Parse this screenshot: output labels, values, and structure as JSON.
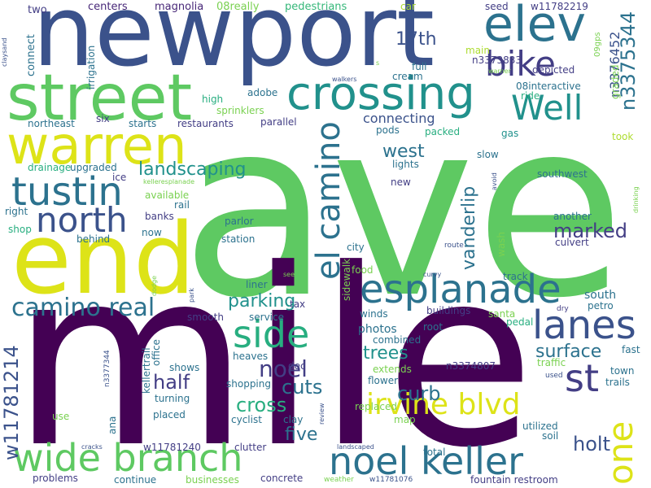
{
  "colors": {
    "dark-purple": "#440154",
    "indigo": "#3b528b",
    "navy": "#433e85",
    "teal-blue": "#2c728e",
    "teal": "#21918c",
    "sea-green": "#28ae80",
    "green": "#5ec962",
    "lime": "#addc30",
    "yellow": "#dde318",
    "light-green": "#7ad151",
    "mint": "#35b779",
    "purple": "#482878"
  },
  "words": {
    "ave": "ave",
    "mile": "mile",
    "newport": "newport",
    "end": "end",
    "street": "street",
    "warren": "warren",
    "crossing": "crossing",
    "elev": "elev",
    "bike": "bike",
    "well": "Well",
    "tustin": "tustin",
    "north": "north",
    "esplanade": "esplanade",
    "el_camino": "el camino",
    "camino_real": "camino real",
    "side": "side",
    "lanes": "lanes",
    "wide_branch": "wide branch",
    "noel_keller": "noel keller",
    "irvine_blvd": "irvine blvd",
    "st": "st",
    "one": "one",
    "w11781214": "w11781214",
    "landscaping": "landscaping",
    "seventeenth": "17th",
    "n3375344": "n3375344",
    "n3376452": "n3376452",
    "west": "west",
    "vanderlip": "vanderlip",
    "marked": "marked",
    "parking": "parking",
    "half": "half",
    "noel": "noel",
    "cuts": "cuts",
    "cross": "cross",
    "trees": "trees",
    "surface": "surface",
    "curb": "curb",
    "five": "five",
    "holt": "holt",
    "connecting": "connecting",
    "two": "two",
    "centers": "centers",
    "magnolia": "magnolia",
    "o8really": "08really",
    "pedestrians": "pedestrians",
    "car": "car",
    "seed": "seed",
    "w11782219": "w11782219",
    "connect": "connect",
    "irrigation": "irrigation",
    "claysand": "claysand",
    "main": "main",
    "n3373833": "n3373833",
    "depicted": "depicted",
    "o9gps": "09gps",
    "graded": "graded",
    "warner": "warner",
    "walkers": "walkers",
    "full": "full",
    "cream": "cream",
    "o8interactive": "08interactive",
    "ride": "ride",
    "adobe": "adobe",
    "high": "high",
    "sprinklers": "sprinklers",
    "six": "six",
    "starts": "starts",
    "restaurants": "restaurants",
    "parallel": "parallel",
    "pods": "pods",
    "packed": "packed",
    "northeast": "northeast",
    "gas": "gas",
    "took": "took",
    "slow": "slow",
    "drainage": "drainage",
    "upgraded": "upgraded",
    "ice": "ice",
    "lights": "lights",
    "new": "new",
    "avoid": "avoid",
    "drinking": "drinking",
    "kelleresplanade": "kelleresplanade",
    "southwest": "southwest",
    "available": "available",
    "rail": "rail",
    "right": "right",
    "banks": "banks",
    "parlor": "parlor",
    "another": "another",
    "shop": "shop",
    "now": "now",
    "station": "station",
    "behind": "behind",
    "city": "city",
    "sidewalk": "sidewalk",
    "route": "route",
    "culvert": "culvert",
    "wash": "wash",
    "food": "food",
    "see": "see",
    "curvy": "curvy",
    "track": "track",
    "liner": "liner",
    "dodge": "dodge",
    "park": "park",
    "south": "south",
    "tax": "tax",
    "petro": "petro",
    "dry": "dry",
    "smooth": "smooth",
    "service": "service",
    "winds": "winds",
    "buildings": "buildings",
    "santa": "santa",
    "photos": "photos",
    "pedal": "pedal",
    "root": "root",
    "kellertrail": "kellertrail",
    "office": "office",
    "combined": "combined",
    "heaves": "heaves",
    "n3374807": "n3374807",
    "fast": "fast",
    "dec": "dec",
    "traffic": "traffic",
    "n3377344": "n3377344",
    "shows": "shows",
    "extends": "extends",
    "town": "town",
    "used": "used",
    "trails": "trails",
    "shopping": "shopping",
    "flower": "flower",
    "turning": "turning",
    "replaced": "replaced",
    "review": "review",
    "placed": "placed",
    "cyclist": "cyclist",
    "clay": "clay",
    "map": "map",
    "use": "use",
    "ana": "ana",
    "w11781240": "w11781240",
    "utilized": "utilized",
    "soil": "soil",
    "clutter": "clutter",
    "cracks": "cracks",
    "landscaped": "landscaped",
    "total": "total",
    "concrete": "concrete",
    "problems": "problems",
    "continue": "continue",
    "businesses": "businesses",
    "weather": "weather",
    "w11781076": "w11781076",
    "fountain_restroom": "fountain restroom",
    "s": "s"
  }
}
